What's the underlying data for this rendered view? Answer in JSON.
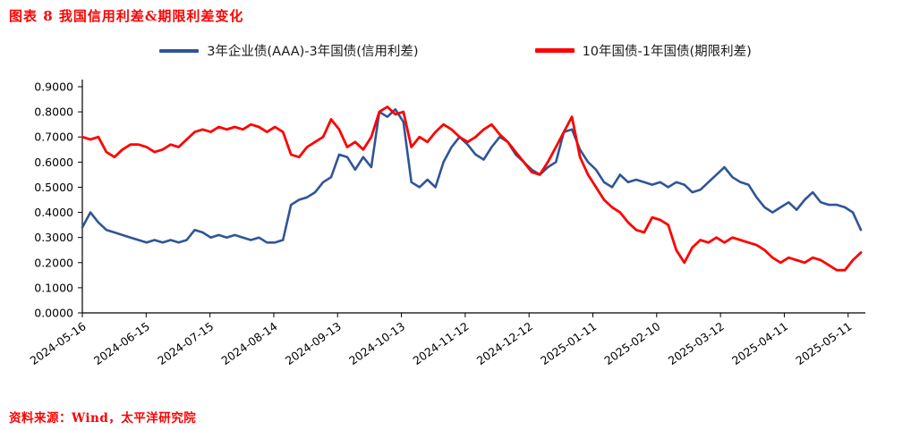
{
  "title": "图表 8 我国信用利差&期限利差变化",
  "source": "资料来源：Wind，太平洋研究院",
  "chart_data": {
    "type": "line",
    "title": "图表 8 我国信用利差&期限利差变化",
    "ylabel": "",
    "xlabel": "",
    "ylim": [
      0,
      0.9
    ],
    "grid": false,
    "legend_position": "top",
    "y_ticks": [
      "0.0000",
      "0.1000",
      "0.2000",
      "0.3000",
      "0.4000",
      "0.5000",
      "0.6000",
      "0.7000",
      "0.8000",
      "0.9000"
    ],
    "x_tick_labels": [
      "2024-05-16",
      "2024-06-15",
      "2024-07-15",
      "2024-08-14",
      "2024-09-13",
      "2024-10-13",
      "2024-11-12",
      "2024-12-12",
      "2025-01-11",
      "2025-02-10",
      "2025-03-12",
      "2025-04-11",
      "2025-05-11"
    ],
    "x_tick_interval_days": 30,
    "total_days": 366,
    "series": [
      {
        "name": "3年企业债(AAA)-3年国债(信用利差)",
        "color": "#2F5597",
        "width": 2.6,
        "values": [
          0.34,
          0.4,
          0.36,
          0.33,
          0.32,
          0.31,
          0.3,
          0.29,
          0.28,
          0.29,
          0.28,
          0.29,
          0.28,
          0.29,
          0.33,
          0.32,
          0.3,
          0.31,
          0.3,
          0.31,
          0.3,
          0.29,
          0.3,
          0.28,
          0.28,
          0.29,
          0.43,
          0.45,
          0.46,
          0.48,
          0.52,
          0.54,
          0.63,
          0.62,
          0.57,
          0.62,
          0.58,
          0.8,
          0.78,
          0.81,
          0.76,
          0.52,
          0.5,
          0.53,
          0.5,
          0.6,
          0.66,
          0.7,
          0.67,
          0.63,
          0.61,
          0.66,
          0.7,
          0.68,
          0.63,
          0.6,
          0.57,
          0.55,
          0.58,
          0.6,
          0.72,
          0.73,
          0.65,
          0.6,
          0.57,
          0.52,
          0.5,
          0.55,
          0.52,
          0.53,
          0.52,
          0.51,
          0.52,
          0.5,
          0.52,
          0.51,
          0.48,
          0.49,
          0.52,
          0.55,
          0.58,
          0.54,
          0.52,
          0.51,
          0.46,
          0.42,
          0.4,
          0.42,
          0.44,
          0.41,
          0.45,
          0.48,
          0.44,
          0.43,
          0.43,
          0.42,
          0.4,
          0.33
        ]
      },
      {
        "name": "10年国债-1年国债(期限利差)",
        "color": "#FF0000",
        "width": 2.8,
        "values": [
          0.7,
          0.69,
          0.7,
          0.64,
          0.62,
          0.65,
          0.67,
          0.67,
          0.66,
          0.64,
          0.65,
          0.67,
          0.66,
          0.69,
          0.72,
          0.73,
          0.72,
          0.74,
          0.73,
          0.74,
          0.73,
          0.75,
          0.74,
          0.72,
          0.74,
          0.72,
          0.63,
          0.62,
          0.66,
          0.68,
          0.7,
          0.77,
          0.73,
          0.66,
          0.68,
          0.65,
          0.7,
          0.8,
          0.82,
          0.79,
          0.8,
          0.66,
          0.7,
          0.68,
          0.72,
          0.75,
          0.73,
          0.7,
          0.68,
          0.7,
          0.73,
          0.75,
          0.71,
          0.68,
          0.64,
          0.6,
          0.56,
          0.55,
          0.6,
          0.66,
          0.72,
          0.78,
          0.62,
          0.55,
          0.5,
          0.45,
          0.42,
          0.4,
          0.36,
          0.33,
          0.32,
          0.38,
          0.37,
          0.35,
          0.25,
          0.2,
          0.26,
          0.29,
          0.28,
          0.3,
          0.28,
          0.3,
          0.29,
          0.28,
          0.27,
          0.25,
          0.22,
          0.2,
          0.22,
          0.21,
          0.2,
          0.22,
          0.21,
          0.19,
          0.17,
          0.17,
          0.21,
          0.24
        ]
      }
    ]
  }
}
